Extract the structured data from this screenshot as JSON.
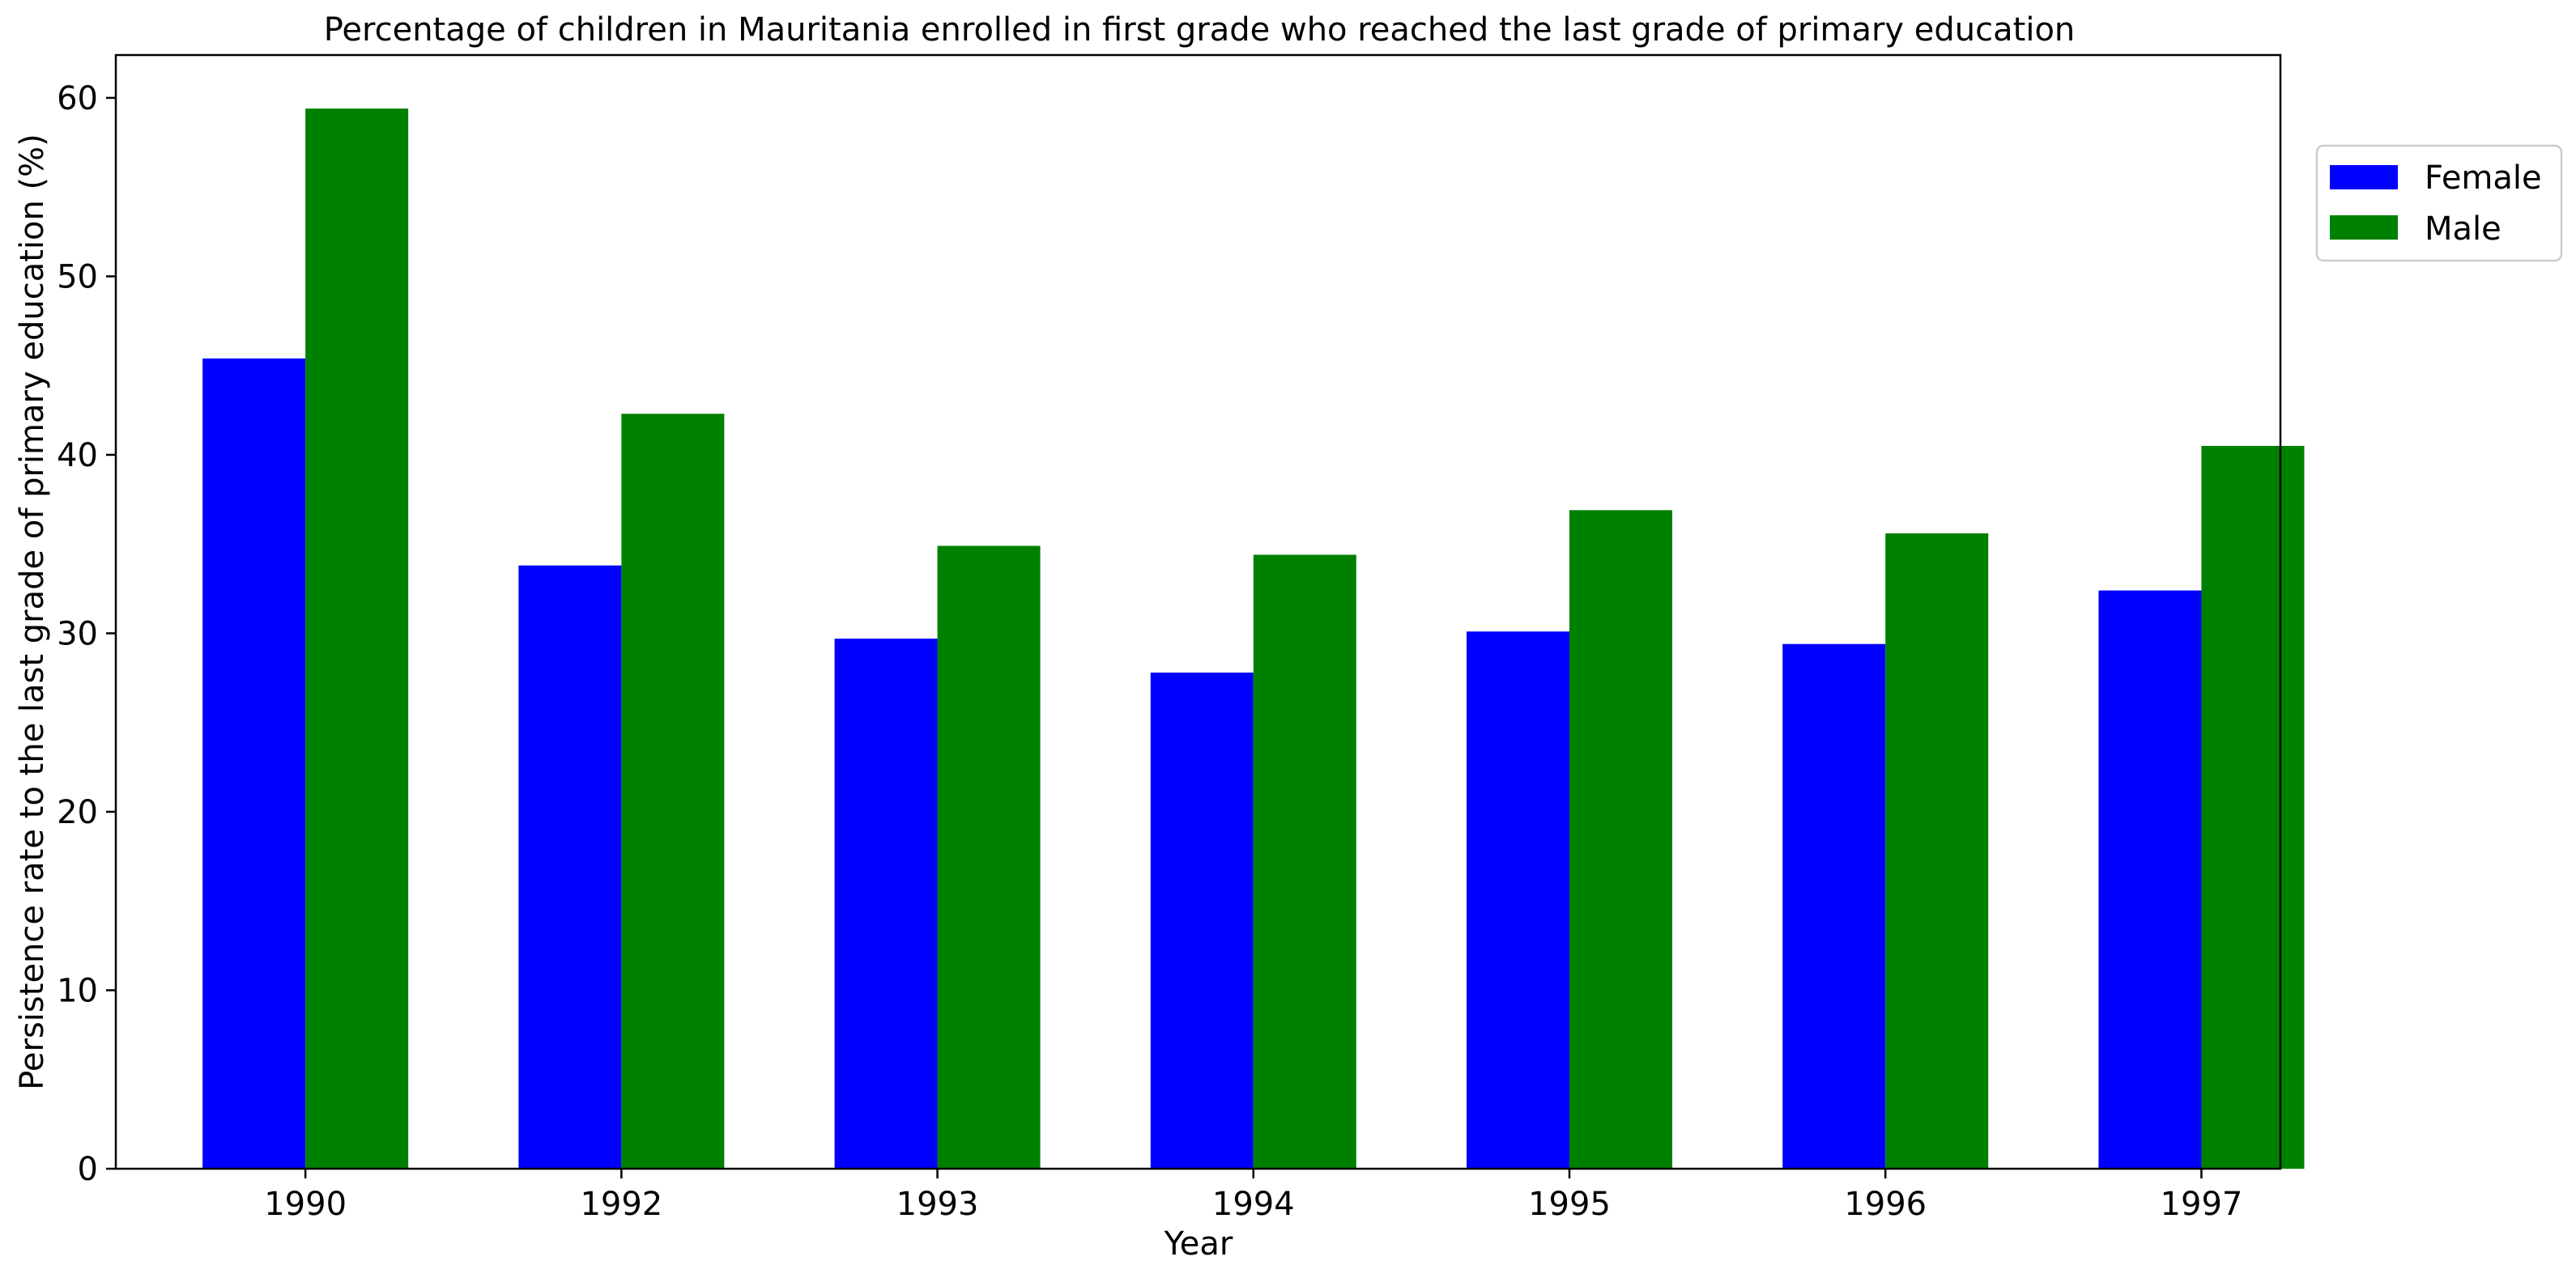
{
  "chart_data": {
    "type": "bar",
    "title": "Percentage of children in Mauritania enrolled in first grade who reached the last grade of primary education",
    "xlabel": "Year",
    "ylabel": "Persistence rate to the last grade of primary education (%)",
    "categories": [
      "1990",
      "1992",
      "1993",
      "1994",
      "1995",
      "1996",
      "1997"
    ],
    "series": [
      {
        "name": "Female",
        "color": "#0000ff",
        "values": [
          45.4,
          33.8,
          29.7,
          27.8,
          30.1,
          29.4,
          32.4
        ]
      },
      {
        "name": "Male",
        "color": "#008000",
        "values": [
          59.4,
          42.3,
          34.9,
          34.4,
          36.9,
          35.6,
          40.5
        ]
      }
    ],
    "ylim": [
      0,
      62.4
    ],
    "yticks": [
      0,
      10,
      20,
      30,
      40,
      50,
      60
    ],
    "grid": false,
    "legend_position": "upper right, outside plot area"
  }
}
